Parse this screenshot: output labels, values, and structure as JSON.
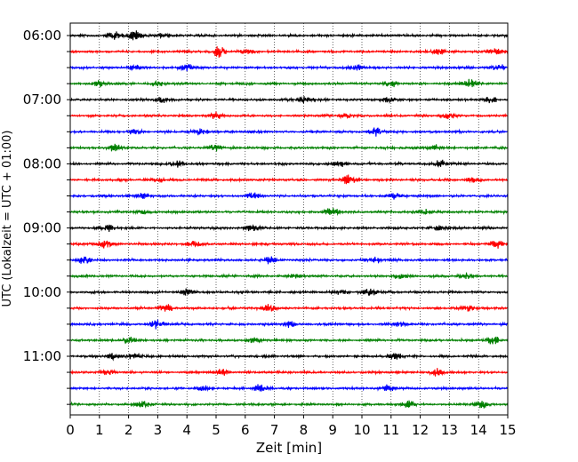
{
  "chart_data": {
    "type": "line",
    "xlabel": "Zeit  [min]",
    "ylabel": "UTC (Lokalzeit = UTC + 01:00)",
    "xlim": [
      0,
      15
    ],
    "x_ticks": [
      "0",
      "1",
      "2",
      "3",
      "4",
      "5",
      "6",
      "7",
      "8",
      "9",
      "10",
      "11",
      "12",
      "13",
      "14",
      "15"
    ],
    "grid": "vertical dotted lines at each minute",
    "row_interval_minutes": 15,
    "rows": [
      "06:00",
      "06:15",
      "06:30",
      "06:45",
      "07:00",
      "07:15",
      "07:30",
      "07:45",
      "08:00",
      "08:15",
      "08:30",
      "08:45",
      "09:00",
      "09:15",
      "09:30",
      "09:45",
      "10:00",
      "10:15",
      "10:30",
      "10:45",
      "11:00",
      "11:15",
      "11:30",
      "11:45"
    ],
    "y_tick_labels": [
      "06:00",
      "07:00",
      "08:00",
      "09:00",
      "10:00",
      "11:00"
    ],
    "trace_colors": [
      "#000000",
      "#ff0000",
      "#0000ff",
      "#008000"
    ],
    "bursts": [
      [
        [
          1.5,
          0.8
        ],
        [
          2.2,
          0.9
        ],
        [
          3.2,
          0.5
        ]
      ],
      [
        [
          5.1,
          1.0
        ],
        [
          6.1,
          0.6
        ],
        [
          12.6,
          0.7
        ],
        [
          14.6,
          0.5
        ]
      ],
      [
        [
          2.2,
          0.5
        ],
        [
          4.0,
          0.6
        ],
        [
          9.8,
          0.5
        ],
        [
          14.7,
          0.5
        ]
      ],
      [
        [
          1.0,
          0.5
        ],
        [
          3.0,
          0.5
        ],
        [
          11.0,
          0.5
        ],
        [
          13.7,
          0.9
        ]
      ],
      [
        [
          3.1,
          0.5
        ],
        [
          8.0,
          0.6
        ],
        [
          10.9,
          0.6
        ],
        [
          14.4,
          0.5
        ]
      ],
      [
        [
          5.0,
          0.8
        ],
        [
          9.5,
          0.5
        ],
        [
          13.0,
          0.6
        ]
      ],
      [
        [
          2.2,
          0.5
        ],
        [
          4.5,
          0.6
        ],
        [
          10.5,
          0.7
        ]
      ],
      [
        [
          1.5,
          0.6
        ],
        [
          5.0,
          0.6
        ],
        [
          12.5,
          0.5
        ]
      ],
      [
        [
          3.7,
          0.6
        ],
        [
          9.2,
          0.5
        ],
        [
          12.7,
          0.7
        ]
      ],
      [
        [
          3.0,
          0.5
        ],
        [
          9.5,
          0.9
        ],
        [
          13.8,
          0.5
        ]
      ],
      [
        [
          2.5,
          0.5
        ],
        [
          6.3,
          0.5
        ],
        [
          11.1,
          0.7
        ]
      ],
      [
        [
          2.5,
          0.5
        ],
        [
          9.0,
          0.9
        ],
        [
          12.2,
          0.5
        ]
      ],
      [
        [
          1.3,
          0.6
        ],
        [
          6.3,
          0.8
        ],
        [
          12.6,
          0.6
        ]
      ],
      [
        [
          1.2,
          0.7
        ],
        [
          4.2,
          0.6
        ],
        [
          14.6,
          0.7
        ]
      ],
      [
        [
          0.5,
          0.8
        ],
        [
          6.8,
          0.7
        ],
        [
          10.5,
          0.6
        ]
      ],
      [
        [
          7.7,
          0.6
        ],
        [
          11.3,
          0.5
        ],
        [
          13.6,
          0.5
        ]
      ],
      [
        [
          4.0,
          0.5
        ],
        [
          9.3,
          0.6
        ],
        [
          10.3,
          0.8
        ]
      ],
      [
        [
          3.3,
          0.7
        ],
        [
          6.8,
          0.7
        ],
        [
          13.7,
          0.6
        ]
      ],
      [
        [
          3.0,
          0.9
        ],
        [
          7.5,
          0.5
        ],
        [
          11.3,
          0.5
        ]
      ],
      [
        [
          2.0,
          0.5
        ],
        [
          6.3,
          0.5
        ],
        [
          14.5,
          0.7
        ]
      ],
      [
        [
          1.5,
          0.8
        ],
        [
          2.2,
          0.7
        ],
        [
          11.2,
          0.5
        ]
      ],
      [
        [
          1.3,
          0.5
        ],
        [
          5.2,
          0.6
        ],
        [
          12.6,
          0.7
        ]
      ],
      [
        [
          4.6,
          0.5
        ],
        [
          6.5,
          0.7
        ],
        [
          10.9,
          0.6
        ]
      ],
      [
        [
          2.5,
          0.6
        ],
        [
          11.6,
          0.7
        ],
        [
          14.1,
          0.6
        ]
      ]
    ]
  }
}
